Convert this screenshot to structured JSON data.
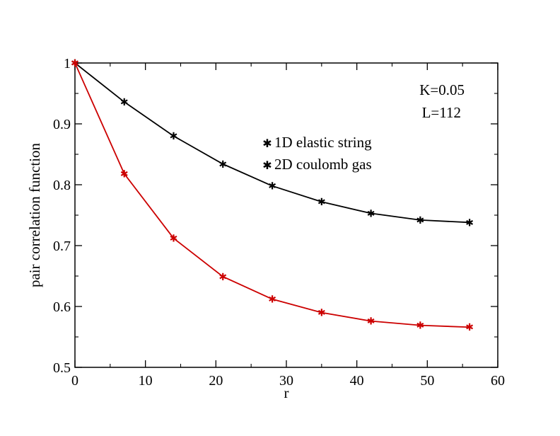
{
  "chart_data": {
    "type": "line",
    "title": "",
    "xlabel": "r",
    "ylabel": "pair correlation function",
    "xlim": [
      0,
      60
    ],
    "ylim": [
      0.5,
      1
    ],
    "x_ticks": [
      0,
      10,
      20,
      30,
      40,
      50,
      60
    ],
    "x_tick_labels": [
      "0",
      "10",
      "20",
      "30",
      "40",
      "50",
      "60"
    ],
    "y_ticks": [
      0.5,
      0.6,
      0.7,
      0.8,
      0.9,
      1
    ],
    "y_tick_labels": [
      "0.5",
      "0.6",
      "0.7",
      "0.8",
      "0.9",
      "1"
    ],
    "grid": false,
    "legend_position": "upper-center",
    "annotations": [
      "K=0.05",
      "L=112"
    ],
    "x": [
      0,
      7,
      14,
      21,
      28,
      35,
      42,
      49,
      56
    ],
    "series": [
      {
        "name": "1D elastic string",
        "color": "#000000",
        "marker": "star",
        "values": [
          1.0,
          0.936,
          0.88,
          0.834,
          0.798,
          0.772,
          0.753,
          0.742,
          0.738
        ]
      },
      {
        "name": "2D coulomb gas",
        "color": "#cc0000",
        "marker": "star",
        "values": [
          1.0,
          0.818,
          0.712,
          0.649,
          0.612,
          0.59,
          0.576,
          0.569,
          0.566
        ]
      }
    ]
  }
}
